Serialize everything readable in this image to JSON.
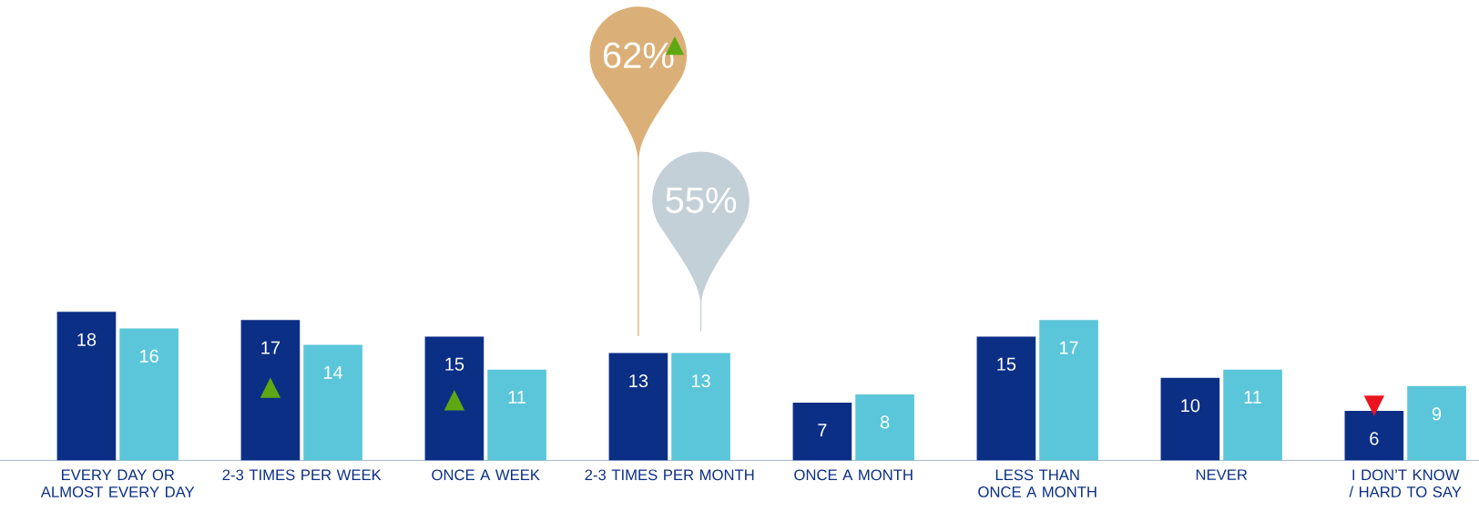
{
  "chart_data": {
    "type": "bar",
    "categories": [
      "EVERY DAY OR ALMOST EVERY DAY",
      "2-3 TIMES PER WEEK",
      "ONCE A WEEK",
      "2-3 TIMES PER MONTH",
      "ONCE A MONTH",
      "LESS THAN ONCE A MONTH",
      "NEVER",
      "I DON’T KNOW / HARD TO SAY"
    ],
    "series": [
      {
        "color": "#0c2f86",
        "values": [
          18,
          17,
          15,
          13,
          7,
          15,
          10,
          6
        ]
      },
      {
        "color": "#5bc6d9",
        "values": [
          16,
          14,
          11,
          13,
          8,
          17,
          11,
          9
        ]
      }
    ],
    "data_labels": true,
    "annotations": [
      "62%",
      "55%",
      "▲",
      {
        "text": "▲",
        "x": "2-3 TIMES PER WEEK",
        "y": 8.8
      },
      {
        "text": "▲",
        "x": "ONCE A WEEK",
        "y": 7.3
      },
      {
        "text": "▼",
        "x": "I DON’T KNOW / HARD TO SAY",
        "y": 6.6
      }
    ]
  }
}
